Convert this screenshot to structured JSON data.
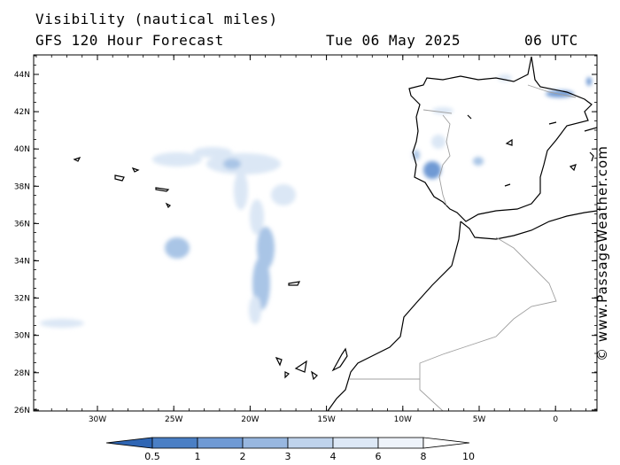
{
  "header": {
    "title": "Visibility (nautical miles)",
    "model": "GFS 120 Hour Forecast",
    "date": "Tue 06 May 2025",
    "time": "06 UTC"
  },
  "credit": "© www.PassageWeather.com",
  "map": {
    "lat_labels": [
      "44N",
      "42N",
      "40N",
      "38N",
      "36N",
      "34N",
      "32N",
      "30N",
      "28N",
      "26N"
    ],
    "lon_labels": [
      "30W",
      "25W",
      "20W",
      "15W",
      "10W",
      "5W",
      "0"
    ],
    "lat_range": [
      26,
      45
    ],
    "lon_range": [
      -34,
      3
    ],
    "colors": {
      "land_outline": "#000000",
      "border": "#a0a0a0",
      "fog_light": "#dbe7f5",
      "fog_mid": "#a9c5e6",
      "fog_dark": "#5b8fd0"
    }
  },
  "colorbar": {
    "labels": [
      "0.5",
      "1",
      "2",
      "3",
      "4",
      "6",
      "8",
      "10"
    ],
    "colors": [
      "#2f66b4",
      "#4a7fc5",
      "#6f9ad4",
      "#98b7e0",
      "#bfd3ec",
      "#dde8f6",
      "#eef3fa",
      "#ffffff"
    ]
  }
}
